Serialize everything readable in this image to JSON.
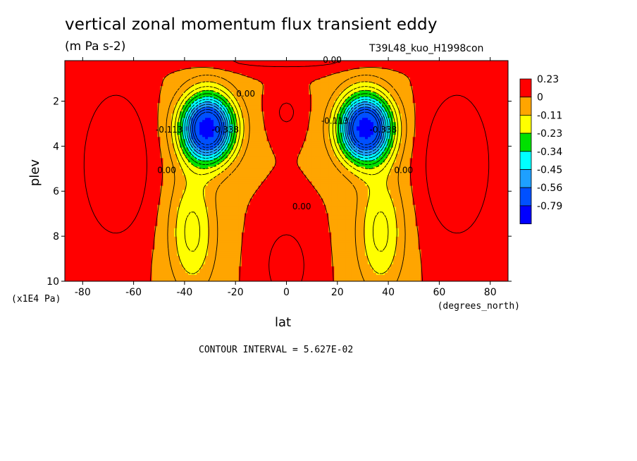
{
  "title": "vertical zonal momentum flux transient eddy",
  "units": "(m Pa s-2)",
  "run_id": "T39L48_kuo_H1998con",
  "contour_interval": "CONTOUR INTERVAL = 5.627E-02",
  "chart_data": {
    "type": "heatmap",
    "xlabel": "lat",
    "xunit": "(degrees_north)",
    "ylabel": "plev",
    "yunit": "(x1E4 Pa)",
    "xlim": [
      -87,
      87
    ],
    "ylim": [
      10,
      0.2
    ],
    "xticks": [
      -80,
      -60,
      -40,
      -20,
      0,
      20,
      40,
      60,
      80
    ],
    "xtick_labels": [
      "-80",
      "-60",
      "-40",
      "-20",
      "0",
      "20",
      "40",
      "60",
      "80"
    ],
    "yticks": [
      2,
      4,
      6,
      8,
      10
    ],
    "ytick_labels": [
      "2",
      "4",
      "6",
      "8",
      "10"
    ],
    "colorbar": {
      "labels": [
        "0.23",
        "0",
        "-0.11",
        "-0.23",
        "-0.34",
        "-0.45",
        "-0.56",
        "-0.79"
      ],
      "colors": [
        "#ff0000",
        "#ffa500",
        "#ffff00",
        "#00e000",
        "#00ffff",
        "#1ea0ff",
        "#0050ff",
        "#0000ff"
      ]
    },
    "field": {
      "background": 0.0,
      "features": [
        {
          "type": "positive",
          "lat": -67,
          "plev": 4.5,
          "value": 0.1
        },
        {
          "type": "positive",
          "lat": 67,
          "plev": 4.5,
          "value": 0.1
        },
        {
          "type": "positive",
          "lat": 0,
          "plev": 9.0,
          "value": 0.08
        },
        {
          "type": "positive",
          "lat": 0,
          "plev": 2.2,
          "value": 0.06
        },
        {
          "type": "positive",
          "lat": 0,
          "plev": 0.2,
          "value": 0.05
        },
        {
          "type": "minimum",
          "lat": -31,
          "plev": 3.2,
          "value": -0.79
        },
        {
          "type": "minimum",
          "lat": 31,
          "plev": 3.2,
          "value": -0.79
        },
        {
          "type": "negative_tongue",
          "lat": -38,
          "plev": 8.5,
          "value": -0.2
        },
        {
          "type": "negative_tongue",
          "lat": 38,
          "plev": 8.5,
          "value": -0.2
        }
      ]
    },
    "contour_labels": [
      {
        "text": "0.00",
        "lat": 18,
        "plev": 0.3
      },
      {
        "text": "0.00",
        "lat": -16,
        "plev": 1.8
      },
      {
        "text": "0.00",
        "lat": 6,
        "plev": 6.8
      },
      {
        "text": "0.00",
        "lat": -47,
        "plev": 5.2
      },
      {
        "text": "0.00",
        "lat": 46,
        "plev": 5.2
      },
      {
        "text": "-0.113",
        "lat": -46,
        "plev": 3.4
      },
      {
        "text": "-0.113",
        "lat": 19,
        "plev": 3.0
      },
      {
        "text": "-0.338",
        "lat": -24,
        "plev": 3.4
      },
      {
        "text": "-0.338",
        "lat": 38,
        "plev": 3.4
      }
    ]
  }
}
